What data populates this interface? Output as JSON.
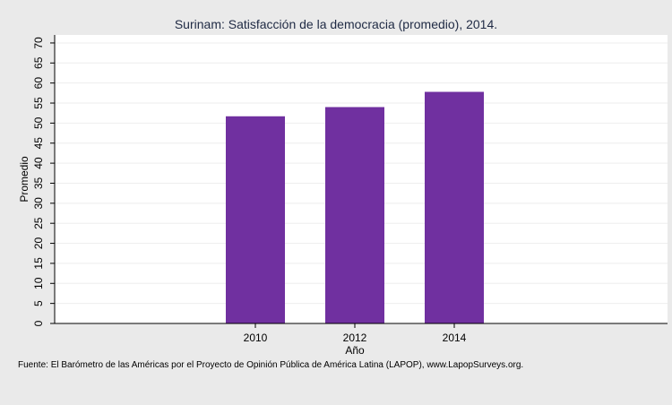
{
  "chart_data": {
    "type": "bar",
    "title": "Surinam: Satisfacción de la democracia (promedio), 2014.",
    "xlabel": "Año",
    "ylabel": "Promedio",
    "categories": [
      "2010",
      "2012",
      "2014"
    ],
    "values": [
      51.7,
      54.0,
      57.8
    ],
    "ylim": [
      0,
      72
    ],
    "yticks": [
      0,
      5,
      10,
      15,
      20,
      25,
      30,
      35,
      40,
      45,
      50,
      55,
      60,
      65,
      70
    ],
    "bar_color": "#7030a0",
    "grid": true,
    "legend": "none"
  },
  "footer": {
    "source": "Fuente: El Barómetro de las Américas por el Proyecto de Opinión Pública de América Latina (LAPOP), www.LapopSurveys.org."
  },
  "colors": {
    "background": "#eaeaea",
    "plot_background": "#ffffff",
    "bar": "#7030a0"
  }
}
